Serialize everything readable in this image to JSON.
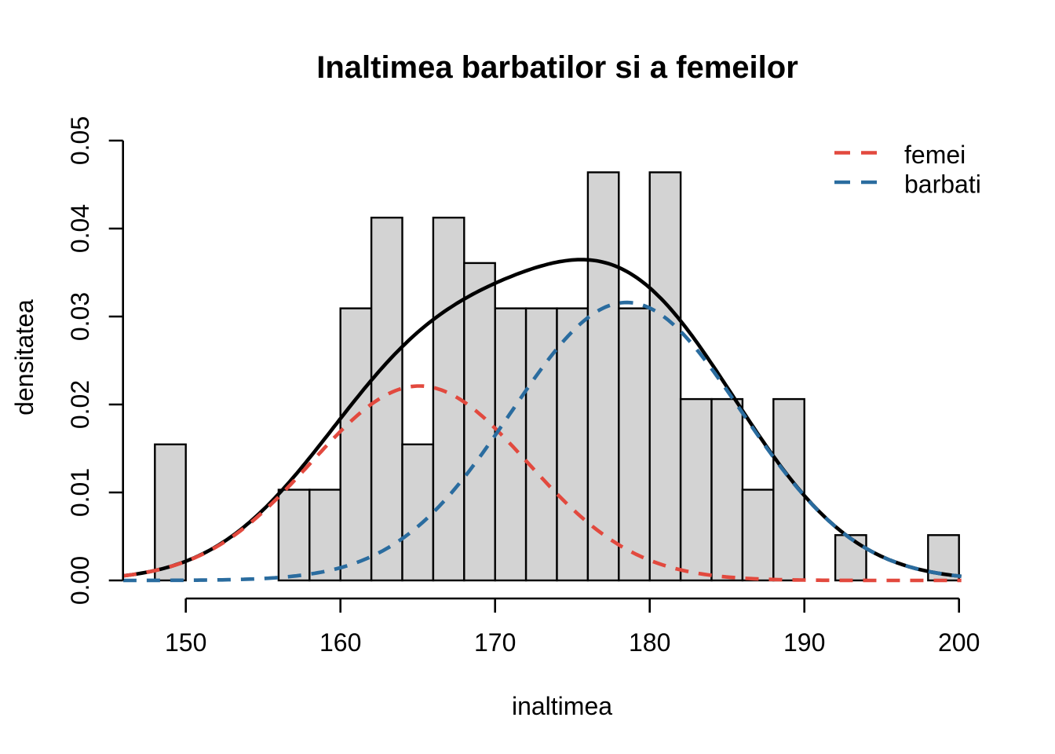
{
  "chart_data": {
    "type": "bar",
    "subtype": "histogram-with-density-curves",
    "title": "Inaltimea barbatilor si a femeilor",
    "xlabel": "inaltimea",
    "ylabel": "densitatea",
    "x_ticks": [
      150,
      160,
      170,
      180,
      190,
      200
    ],
    "y_tick_labels": [
      "0.00",
      "0.01",
      "0.02",
      "0.03",
      "0.04",
      "0.05"
    ],
    "xlim": [
      145.95,
      200.15
    ],
    "ylim": [
      0,
      0.05
    ],
    "grid": "off",
    "legend_position": "top-right",
    "bars": [
      {
        "from": 148,
        "to": 150,
        "density": 0.01546
      },
      {
        "from": 156,
        "to": 158,
        "density": 0.01031
      },
      {
        "from": 158,
        "to": 160,
        "density": 0.01031
      },
      {
        "from": 160,
        "to": 162,
        "density": 0.03093
      },
      {
        "from": 162,
        "to": 164,
        "density": 0.04124
      },
      {
        "from": 164,
        "to": 166,
        "density": 0.01546
      },
      {
        "from": 166,
        "to": 168,
        "density": 0.04124
      },
      {
        "from": 168,
        "to": 170,
        "density": 0.03608
      },
      {
        "from": 170,
        "to": 172,
        "density": 0.03093
      },
      {
        "from": 172,
        "to": 174,
        "density": 0.03093
      },
      {
        "from": 174,
        "to": 176,
        "density": 0.03093
      },
      {
        "from": 176,
        "to": 178,
        "density": 0.04639
      },
      {
        "from": 178,
        "to": 180,
        "density": 0.03093
      },
      {
        "from": 180,
        "to": 182,
        "density": 0.04639
      },
      {
        "from": 182,
        "to": 184,
        "density": 0.02062
      },
      {
        "from": 184,
        "to": 186,
        "density": 0.02062
      },
      {
        "from": 186,
        "to": 188,
        "density": 0.01031
      },
      {
        "from": 188,
        "to": 190,
        "density": 0.02062
      },
      {
        "from": 192,
        "to": 194,
        "density": 0.00515
      },
      {
        "from": 198,
        "to": 200,
        "density": 0.00515
      }
    ],
    "curves": [
      {
        "name": "total",
        "style": "solid",
        "color": "#000000",
        "components": [
          "femei",
          "barbati"
        ]
      },
      {
        "name": "femei",
        "style": "dashed",
        "color": "#E2493E",
        "mean": 165.1,
        "sd": 7.0,
        "peak": 0.0221
      },
      {
        "name": "barbati",
        "style": "dashed",
        "color": "#2A6C9F",
        "mean": 178.5,
        "sd": 7.45,
        "peak": 0.0316
      }
    ],
    "legend": [
      {
        "label": "femei",
        "color": "#E2493E"
      },
      {
        "label": "barbati",
        "color": "#2A6C9F"
      }
    ],
    "colors": {
      "bar_fill": "#D3D3D3",
      "bar_border": "#000000",
      "axis": "#000000",
      "background": "#FFFFFF"
    }
  }
}
